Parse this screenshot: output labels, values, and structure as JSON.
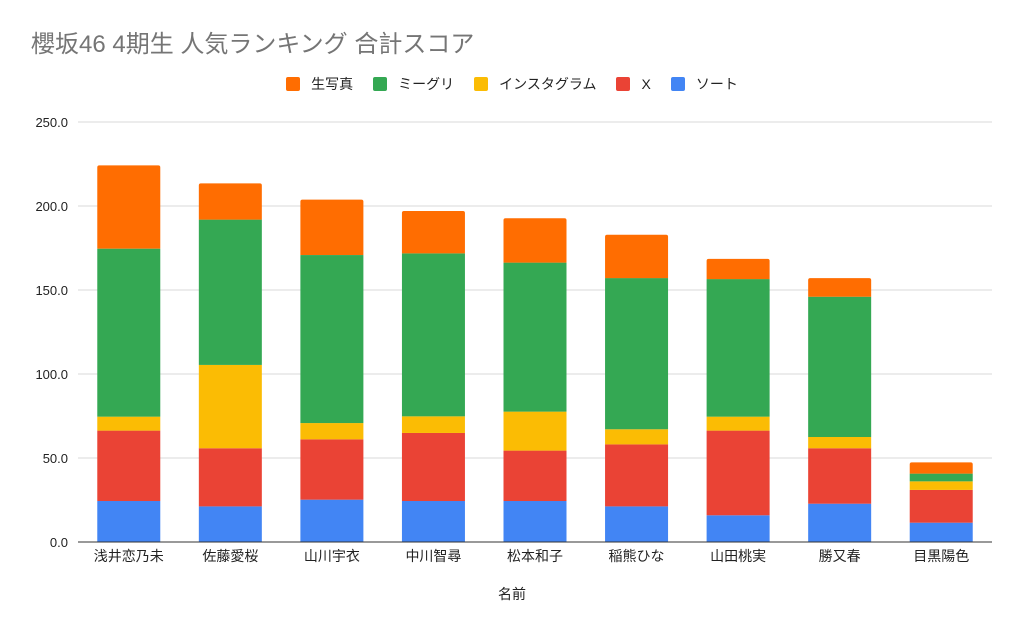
{
  "chart_data": {
    "type": "bar",
    "stacked": true,
    "title": "櫻坂46 4期生 人気ランキング 合計スコア",
    "xlabel": "名前",
    "ylabel": "",
    "ylim": [
      0,
      250
    ],
    "yticks": [
      "0.0",
      "50.0",
      "100.0",
      "150.0",
      "200.0",
      "250.0"
    ],
    "ytick_values": [
      0,
      50,
      100,
      150,
      200,
      250
    ],
    "grid": true,
    "legend_position": "top",
    "categories": [
      "浅井恋乃未",
      "佐藤愛桜",
      "山川宇衣",
      "中川智尋",
      "松本和子",
      "稲熊ひな",
      "山田桃実",
      "勝又春",
      "目黒陽色"
    ],
    "series": [
      {
        "name": "ソート",
        "color": "#4285f4",
        "values": [
          24.4,
          21.2,
          25.2,
          24.4,
          24.4,
          21.2,
          15.9,
          22.8,
          11.5
        ]
      },
      {
        "name": "X",
        "color": "#ea4335",
        "values": [
          41.9,
          34.6,
          35.9,
          40.5,
          30.0,
          36.9,
          50.4,
          33.0,
          19.5
        ]
      },
      {
        "name": "インスタグラム",
        "color": "#fbbc04",
        "values": [
          8.3,
          49.6,
          9.7,
          9.9,
          23.2,
          9.0,
          8.3,
          6.7,
          5.1
        ]
      },
      {
        "name": "ミーグリ",
        "color": "#34a853",
        "values": [
          100.0,
          86.5,
          100.0,
          97.0,
          88.7,
          90.0,
          81.9,
          83.5,
          4.6
        ]
      },
      {
        "name": "生写真",
        "color": "#ff6d01",
        "values": [
          49.6,
          21.6,
          33.0,
          25.2,
          26.4,
          25.8,
          12.0,
          11.1,
          6.7
        ]
      }
    ],
    "legend_order": [
      "生写真",
      "ミーグリ",
      "インスタグラム",
      "X",
      "ソート"
    ]
  }
}
